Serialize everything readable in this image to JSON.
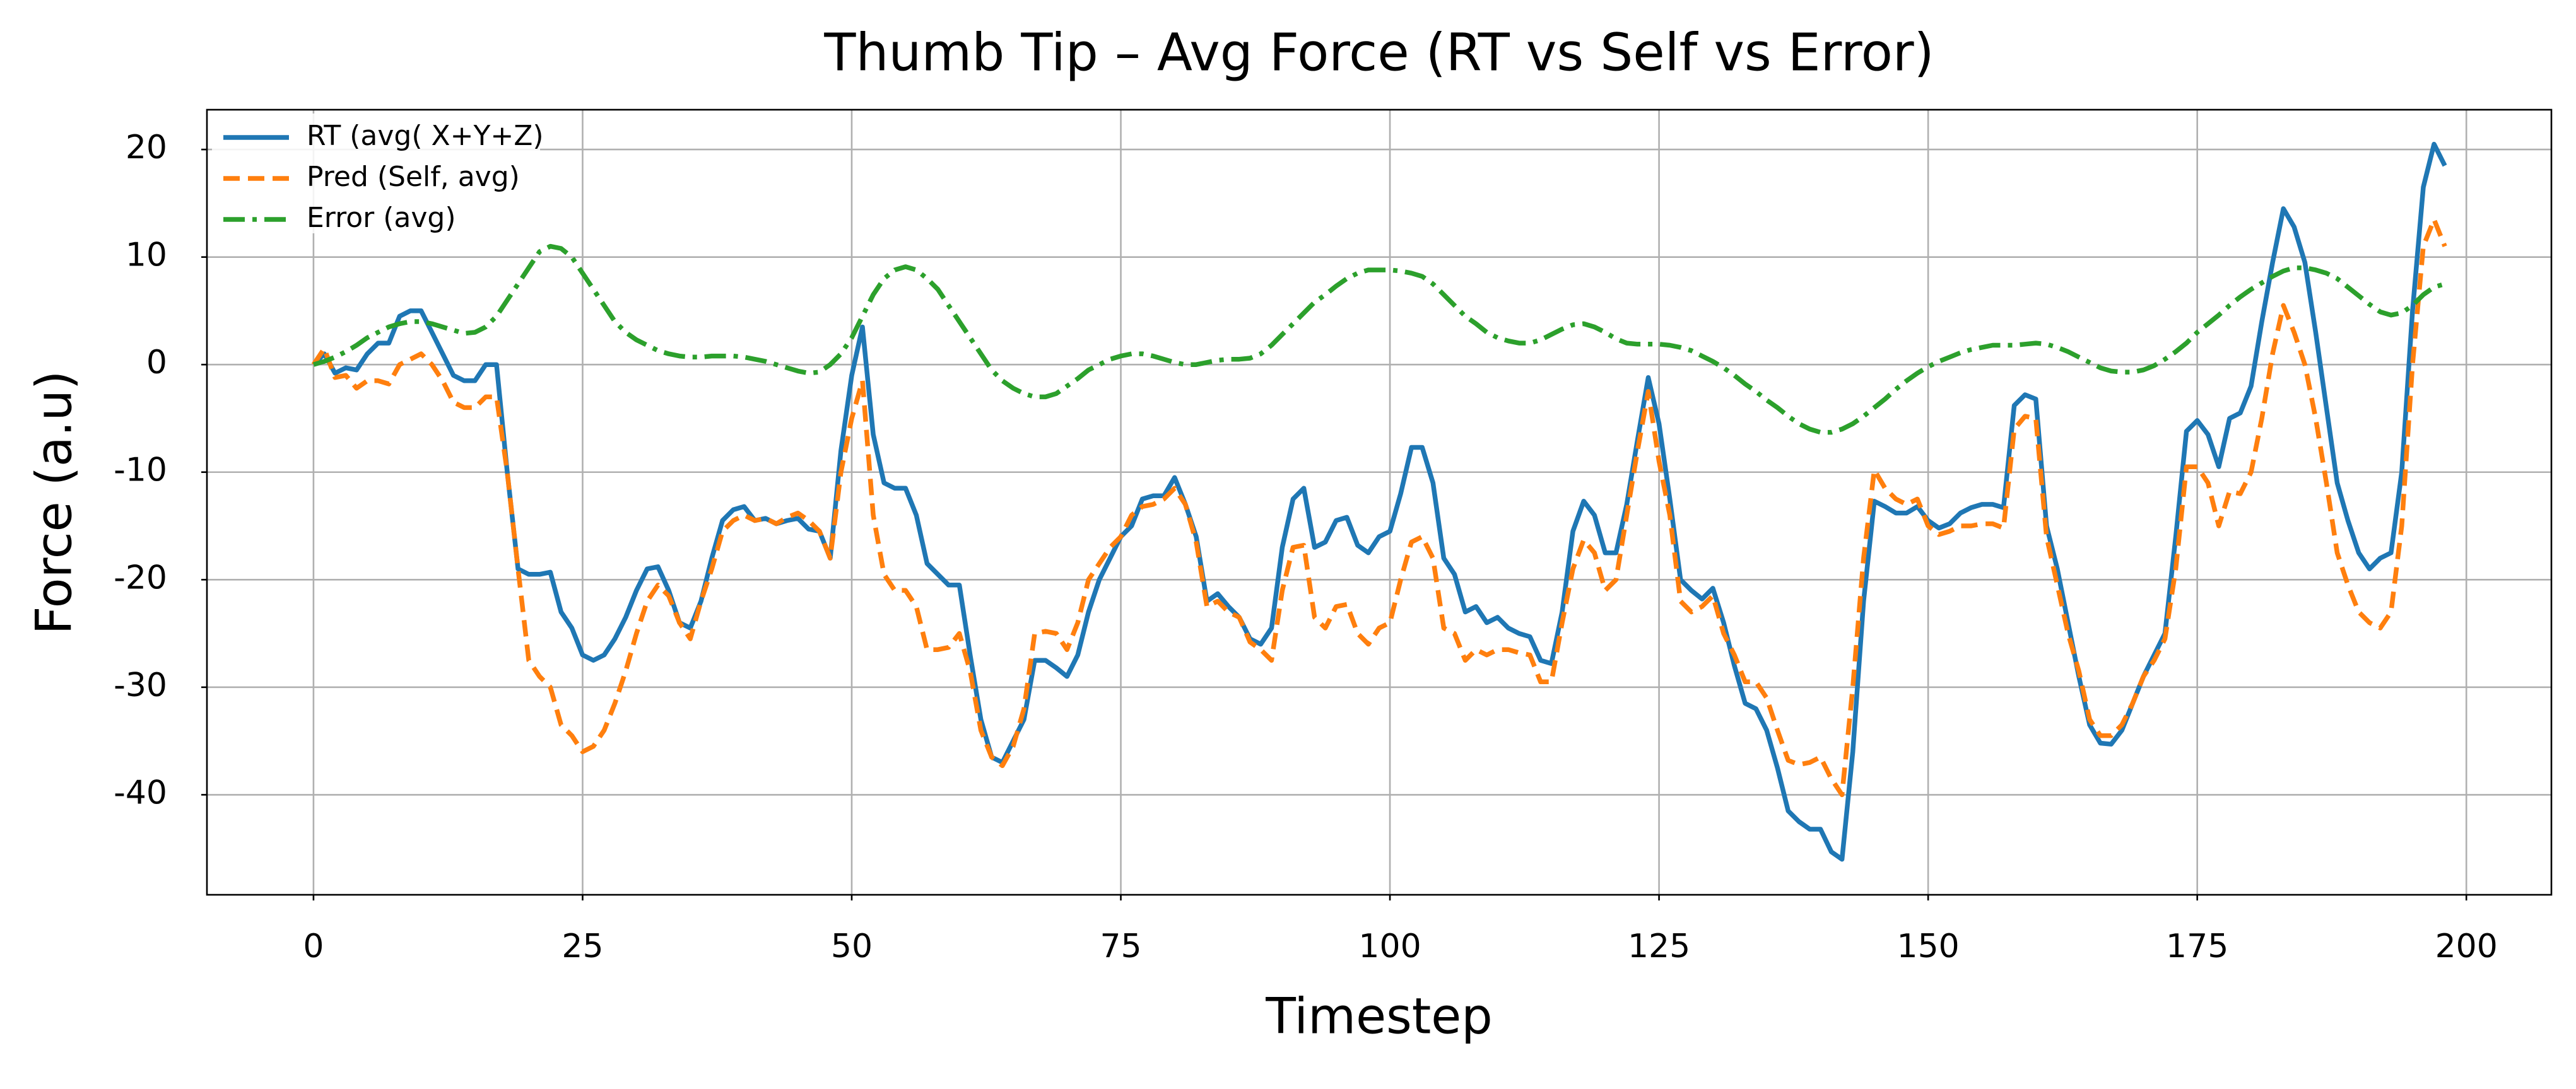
{
  "chart_data": {
    "type": "line",
    "title": "Thumb Tip – Avg Force (RT vs Self vs Error)",
    "xlabel": "Timestep",
    "ylabel": "Force (a.u)",
    "x": [
      0,
      1,
      2,
      3,
      4,
      5,
      6,
      7,
      8,
      9,
      10,
      11,
      12,
      13,
      14,
      15,
      16,
      17,
      18,
      19,
      20,
      21,
      22,
      23,
      24,
      25,
      26,
      27,
      28,
      29,
      30,
      31,
      32,
      33,
      34,
      35,
      36,
      37,
      38,
      39,
      40,
      41,
      42,
      43,
      44,
      45,
      46,
      47,
      48,
      49,
      50,
      51,
      52,
      53,
      54,
      55,
      56,
      57,
      58,
      59,
      60,
      61,
      62,
      63,
      64,
      65,
      66,
      67,
      68,
      69,
      70,
      71,
      72,
      73,
      74,
      75,
      76,
      77,
      78,
      79,
      80,
      81,
      82,
      83,
      84,
      85,
      86,
      87,
      88,
      89,
      90,
      91,
      92,
      93,
      94,
      95,
      96,
      97,
      98,
      99,
      100,
      101,
      102,
      103,
      104,
      105,
      106,
      107,
      108,
      109,
      110,
      111,
      112,
      113,
      114,
      115,
      116,
      117,
      118,
      119,
      120,
      121,
      122,
      123,
      124,
      125,
      126,
      127,
      128,
      129,
      130,
      131,
      132,
      133,
      134,
      135,
      136,
      137,
      138,
      139,
      140,
      141,
      142,
      143,
      144,
      145,
      146,
      147,
      148,
      149,
      150,
      151,
      152,
      153,
      154,
      155,
      156,
      157,
      158,
      159,
      160,
      161,
      162,
      163,
      164,
      165,
      166,
      167,
      168,
      169,
      170,
      171,
      172,
      173,
      174,
      175,
      176,
      177,
      178,
      179,
      180,
      181,
      182,
      183,
      184,
      185,
      186,
      187,
      188,
      189,
      190,
      191,
      192,
      193,
      194,
      195,
      196,
      197,
      198
    ],
    "series": [
      {
        "name": "RT (avg( X+Y+Z)",
        "color": "#1f77b4",
        "linestyle": "solid",
        "values": [
          0,
          1,
          -0.8,
          -0.3,
          -0.5,
          1,
          2,
          2,
          4.5,
          5,
          5,
          3,
          1,
          -1,
          -1.5,
          -1.5,
          0,
          0,
          -10,
          -19,
          -19.5,
          -19.5,
          -19.3,
          -23,
          -24.5,
          -27,
          -27.5,
          -27,
          -25.5,
          -23.5,
          -21,
          -19,
          -18.8,
          -21,
          -24,
          -24.5,
          -22,
          -18,
          -14.5,
          -13.5,
          -13.2,
          -14.5,
          -14.3,
          -14.8,
          -14.5,
          -14.3,
          -15.3,
          -15.5,
          -18,
          -8,
          -1,
          3.5,
          -6.5,
          -11,
          -11.5,
          -11.5,
          -14,
          -18.5,
          -19.5,
          -20.5,
          -20.5,
          -27,
          -33,
          -36.5,
          -37,
          -35,
          -33,
          -27.5,
          -27.5,
          -28.2,
          -29,
          -27,
          -23,
          -20,
          -18,
          -16,
          -15,
          -12.5,
          -12.2,
          -12.2,
          -10.5,
          -13,
          -16,
          -22,
          -21.3,
          -22.5,
          -23.5,
          -25.5,
          -26,
          -24.5,
          -17,
          -12.5,
          -11.5,
          -17,
          -16.5,
          -14.5,
          -14.2,
          -16.8,
          -17.5,
          -16,
          -15.5,
          -12,
          -7.7,
          -7.7,
          -11,
          -18,
          -19.5,
          -23,
          -22.5,
          -24,
          -23.5,
          -24.5,
          -25,
          -25.3,
          -27.5,
          -27.8,
          -23,
          -15.5,
          -12.7,
          -14,
          -17.5,
          -17.5,
          -13,
          -7,
          -1.2,
          -5.5,
          -12.5,
          -20,
          -21,
          -21.8,
          -20.8,
          -24,
          -28,
          -31.5,
          -32,
          -34,
          -37.5,
          -41.5,
          -42.5,
          -43.2,
          -43.2,
          -45.3,
          -46,
          -36,
          -22,
          -12.7,
          -13.2,
          -13.8,
          -13.8,
          -13.2,
          -14.5,
          -15.2,
          -14.8,
          -13.8,
          -13.3,
          -13,
          -13,
          -13.3,
          -3.8,
          -2.8,
          -3.2,
          -15,
          -19,
          -24,
          -29,
          -33.5,
          -35.2,
          -35.3,
          -34,
          -31.5,
          -29,
          -27,
          -25,
          -16,
          -6.2,
          -5.2,
          -6.5,
          -9.5,
          -5,
          -4.5,
          -2,
          4,
          9.5,
          14.5,
          12.8,
          9.5,
          3,
          -4,
          -11,
          -14.5,
          -17.5,
          -19,
          -18,
          -17.5,
          -10,
          5,
          16.5,
          20.5,
          18.5
        ]
      },
      {
        "name": "Pred (Self, avg)",
        "color": "#ff7f0e",
        "linestyle": "dashed",
        "values": [
          0,
          1.5,
          -1.2,
          -1,
          -2.2,
          -1.5,
          -1.5,
          -1.8,
          0,
          0.5,
          1,
          0,
          -1.5,
          -3.5,
          -4,
          -4,
          -3,
          -3,
          -10,
          -19,
          -27.5,
          -29,
          -30,
          -33.5,
          -34.5,
          -36,
          -35.5,
          -34,
          -31.5,
          -28.5,
          -25,
          -22,
          -20.5,
          -21.5,
          -24,
          -25.5,
          -22,
          -19,
          -15.5,
          -14.5,
          -14,
          -14.5,
          -14.3,
          -14.8,
          -14.2,
          -13.8,
          -14.5,
          -15.5,
          -18,
          -10,
          -5,
          -1.5,
          -14,
          -19.5,
          -21,
          -21,
          -22.5,
          -26.5,
          -26.5,
          -26.3,
          -25,
          -28.5,
          -34,
          -36.5,
          -37.3,
          -35.5,
          -32,
          -25,
          -24.8,
          -25,
          -26.5,
          -24,
          -20,
          -18.5,
          -17,
          -16,
          -14,
          -13.2,
          -13,
          -12.5,
          -11.5,
          -13,
          -16.5,
          -22.5,
          -22,
          -23,
          -23.5,
          -25.8,
          -26.5,
          -27.5,
          -21,
          -17,
          -16.8,
          -23.5,
          -24.5,
          -22.5,
          -22.3,
          -25,
          -26,
          -24.5,
          -24,
          -20,
          -16.5,
          -16,
          -18,
          -24.5,
          -25,
          -27.5,
          -26.5,
          -27,
          -26.5,
          -26.5,
          -26.8,
          -27,
          -29.5,
          -29.5,
          -24,
          -19,
          -16.3,
          -17.5,
          -21,
          -20,
          -14,
          -8,
          -2.5,
          -9,
          -14,
          -22,
          -23,
          -22.5,
          -21.5,
          -25,
          -27,
          -29.5,
          -29.5,
          -31,
          -34,
          -36.8,
          -37.2,
          -37,
          -36.5,
          -38.5,
          -40,
          -30,
          -18,
          -9.8,
          -11.5,
          -12.5,
          -13,
          -12.5,
          -15,
          -15.8,
          -15.5,
          -15,
          -15,
          -14.8,
          -14.8,
          -15.2,
          -6,
          -4.8,
          -5,
          -16,
          -20.5,
          -25,
          -28.5,
          -33,
          -34.5,
          -34.5,
          -33.5,
          -31.5,
          -29,
          -27.5,
          -25.5,
          -19,
          -9.5,
          -9.5,
          -11,
          -15,
          -11.8,
          -12,
          -10,
          -5,
          1,
          5.5,
          3,
          0,
          -5,
          -11,
          -17.5,
          -20.5,
          -23,
          -24,
          -24.5,
          -23,
          -15,
          0,
          11,
          13.5,
          11
        ]
      },
      {
        "name": "Error (avg)",
        "color": "#2ca02c",
        "linestyle": "dashdot",
        "values": [
          0,
          0.3,
          0.7,
          1.2,
          1.8,
          2.5,
          3,
          3.5,
          3.8,
          4,
          4,
          3.8,
          3.5,
          3.2,
          2.9,
          3,
          3.5,
          4.5,
          6,
          7.5,
          9,
          10.5,
          11,
          10.8,
          10,
          8.5,
          7,
          5.5,
          4,
          3,
          2.3,
          1.8,
          1.3,
          1,
          0.8,
          0.7,
          0.7,
          0.8,
          0.8,
          0.8,
          0.7,
          0.5,
          0.3,
          0,
          -0.3,
          -0.6,
          -0.8,
          -0.7,
          0,
          1,
          2.5,
          4.5,
          6.5,
          8,
          8.8,
          9.1,
          8.8,
          8,
          7,
          5.5,
          4,
          2.5,
          1,
          -0.5,
          -1.5,
          -2.2,
          -2.7,
          -3,
          -3,
          -2.7,
          -2,
          -1.3,
          -0.5,
          0,
          0.5,
          0.8,
          1,
          1,
          0.8,
          0.5,
          0.2,
          0,
          0,
          0.2,
          0.4,
          0.5,
          0.5,
          0.6,
          1,
          1.8,
          2.8,
          3.8,
          4.8,
          5.8,
          6.5,
          7.3,
          8,
          8.5,
          8.8,
          8.8,
          8.8,
          8.7,
          8.5,
          8.2,
          7.5,
          6.5,
          5.5,
          4.5,
          3.8,
          3,
          2.5,
          2.2,
          2,
          2,
          2.3,
          2.8,
          3.3,
          3.7,
          3.8,
          3.5,
          3,
          2.4,
          2,
          1.9,
          1.9,
          1.9,
          1.8,
          1.6,
          1.3,
          0.8,
          0.3,
          -0.3,
          -1,
          -1.8,
          -2.5,
          -3.3,
          -4,
          -4.8,
          -5.5,
          -6,
          -6.3,
          -6.3,
          -6,
          -5.5,
          -4.8,
          -4,
          -3.2,
          -2.3,
          -1.5,
          -0.8,
          -0.2,
          0.3,
          0.7,
          1.1,
          1.4,
          1.6,
          1.8,
          1.8,
          1.8,
          1.9,
          2,
          1.9,
          1.6,
          1.2,
          0.7,
          0.2,
          -0.3,
          -0.6,
          -0.7,
          -0.7,
          -0.5,
          -0.1,
          0.5,
          1.2,
          2,
          3,
          3.8,
          4.6,
          5.5,
          6.3,
          7,
          7.6,
          8.2,
          8.7,
          9,
          9,
          8.8,
          8.5,
          8,
          7.2,
          6.4,
          5.6,
          4.9,
          4.6,
          4.8,
          5.5,
          6.5,
          7.2,
          7.5
        ]
      }
    ],
    "xlim": [
      -9.9,
      207.9
    ],
    "ylim": [
      -49.3,
      23.7
    ],
    "xticks": [
      0,
      25,
      50,
      75,
      100,
      125,
      150,
      175,
      200
    ],
    "yticks": [
      -40,
      -30,
      -20,
      -10,
      0,
      10,
      20
    ],
    "grid": true,
    "legend": "upper left"
  }
}
